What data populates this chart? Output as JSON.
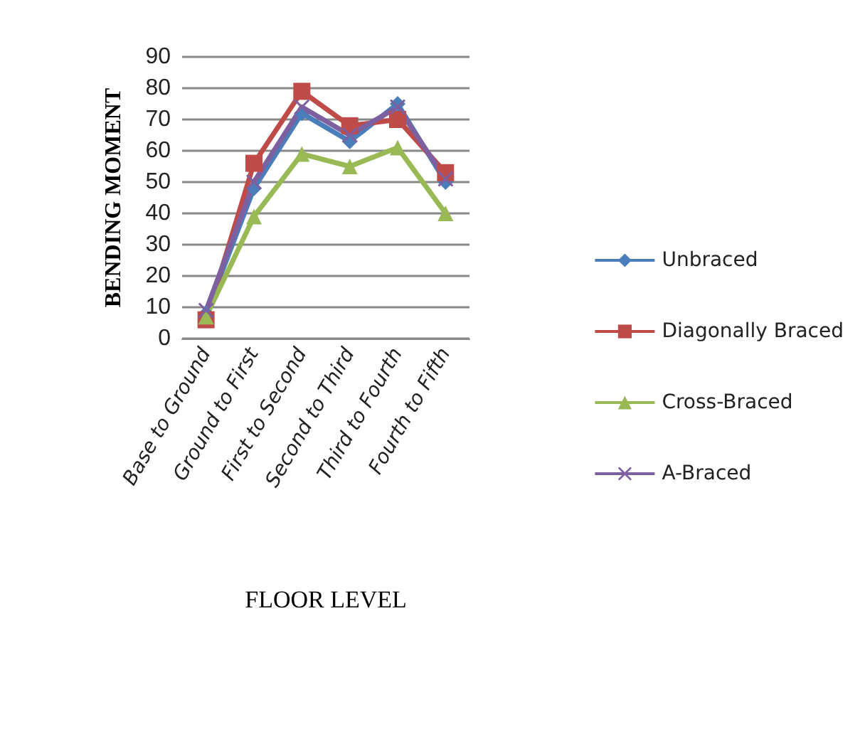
{
  "chart_data": {
    "type": "line",
    "xlabel": "FLOOR LEVEL",
    "ylabel": "BENDING MOMENT",
    "categories": [
      "Base to Ground",
      "Ground to First",
      "First to Second",
      "Second to Third",
      "Third to Fourth",
      "Fourth to Fifth"
    ],
    "series": [
      {
        "name": "Unbraced",
        "color": "#4a7ebb",
        "marker": "diamond",
        "values": [
          8,
          48,
          72,
          63,
          75,
          50
        ]
      },
      {
        "name": "Diagonally Braced",
        "color": "#be4b48",
        "marker": "square",
        "values": [
          6,
          56,
          79,
          68,
          70,
          53
        ]
      },
      {
        "name": "Cross-Braced",
        "color": "#98b954",
        "marker": "triangle",
        "values": [
          7,
          39,
          59,
          55,
          61,
          40
        ]
      },
      {
        "name": "A-Braced",
        "color": "#7d60a0",
        "marker": "cross",
        "values": [
          9,
          50,
          74,
          65,
          74,
          51
        ]
      }
    ],
    "ylim": [
      0,
      90
    ],
    "yticks": [
      0,
      10,
      20,
      30,
      40,
      50,
      60,
      70,
      80,
      90
    ],
    "grid": "y",
    "legend": "right"
  }
}
